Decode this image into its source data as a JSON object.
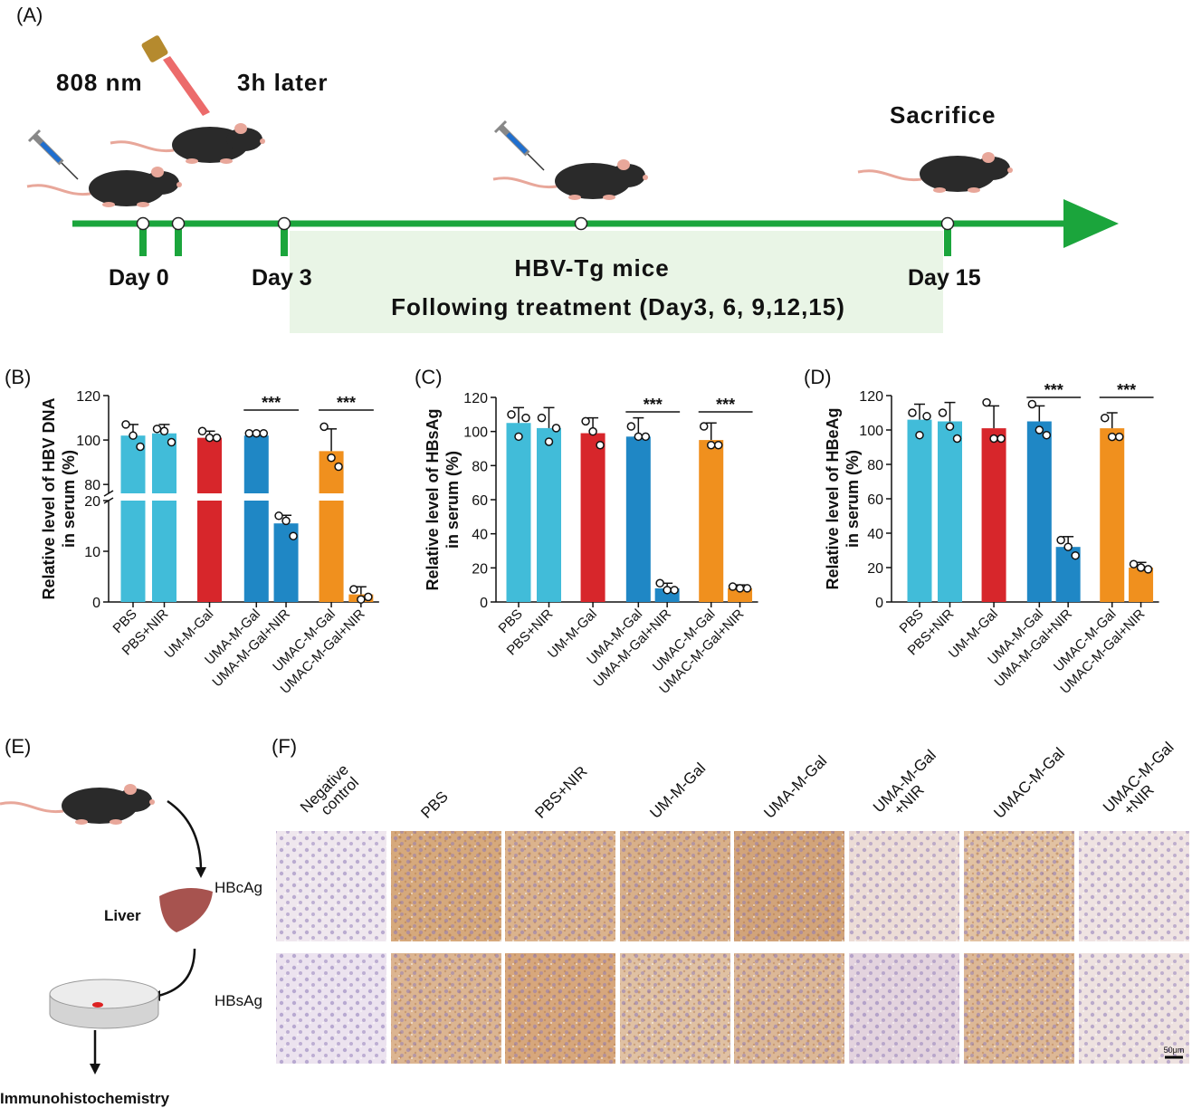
{
  "panel_a": {
    "label": "(A)",
    "laser": "808 nm",
    "later": "3h later",
    "sacrifice": "Sacrifice",
    "days": [
      "Day 0",
      "Day 3",
      "Day 15"
    ],
    "mice": "HBV-Tg mice",
    "treatment": "Following treatment (Day3, 6, 9,12,15)"
  },
  "chart_data": [
    {
      "type": "bar",
      "label": "(B)",
      "ylabel": [
        "Relative level of HBV DNA",
        "in serum (%)"
      ],
      "categories": [
        "PBS",
        "PBS+NIR",
        "UM-M-Gal",
        "UMA-M-Gal",
        "UMA-M-Gal+NIR",
        "UMAC-M-Gal",
        "UMAC-M-Gal+NIR"
      ],
      "values": [
        102,
        103,
        101,
        102,
        15.5,
        95,
        1.5
      ],
      "errors": [
        5,
        4,
        3,
        1,
        1.6,
        10,
        1.5
      ],
      "points": [
        [
          107,
          102,
          97
        ],
        [
          105,
          104,
          99
        ],
        [
          104,
          101,
          101
        ],
        [
          103,
          103,
          103
        ],
        [
          17,
          16,
          13
        ],
        [
          106,
          92,
          88
        ],
        [
          2.5,
          0.5,
          1
        ]
      ],
      "colors": [
        "#41bcd9",
        "#41bcd9",
        "#d7262b",
        "#1f87c5",
        "#1f87c5",
        "#f0901e",
        "#f0901e"
      ],
      "ylim": [
        0,
        120
      ],
      "ybreak": [
        20,
        76
      ],
      "yticks": [
        0,
        10,
        20,
        80,
        100,
        120
      ],
      "significance": [
        {
          "label": "***",
          "groups": [
            "UMA-M-Gal",
            "UMA-M-Gal+NIR"
          ]
        },
        {
          "label": "***",
          "groups": [
            "UMAC-M-Gal",
            "UMAC-M-Gal+NIR"
          ]
        }
      ]
    },
    {
      "type": "bar",
      "label": "(C)",
      "ylabel": [
        "Relative level of HBsAg",
        "in serum (%)"
      ],
      "categories": [
        "PBS",
        "PBS+NIR",
        "UM-M-Gal",
        "UMA-M-Gal",
        "UMA-M-Gal+NIR",
        "UMAC-M-Gal",
        "UMAC-M-Gal+NIR"
      ],
      "values": [
        105,
        102,
        99,
        97,
        8,
        95,
        8
      ],
      "errors": [
        9,
        12,
        9,
        11,
        3,
        10,
        2
      ],
      "points": [
        [
          110,
          97,
          108
        ],
        [
          108,
          94,
          102
        ],
        [
          106,
          100,
          92
        ],
        [
          103,
          97,
          97
        ],
        [
          11,
          7,
          7
        ],
        [
          103,
          92,
          92
        ],
        [
          9,
          8,
          8
        ]
      ],
      "colors": [
        "#41bcd9",
        "#41bcd9",
        "#d7262b",
        "#1f87c5",
        "#1f87c5",
        "#f0901e",
        "#f0901e"
      ],
      "ylim": [
        0,
        120
      ],
      "yticks": [
        0,
        20,
        40,
        60,
        80,
        100,
        120
      ],
      "significance": [
        {
          "label": "***",
          "groups": [
            "UMA-M-Gal",
            "UMA-M-Gal+NIR"
          ]
        },
        {
          "label": "***",
          "groups": [
            "UMAC-M-Gal",
            "UMAC-M-Gal+NIR"
          ]
        }
      ]
    },
    {
      "type": "bar",
      "label": "(D)",
      "ylabel": [
        "Relative level of HBeAg",
        "in serum (%)"
      ],
      "categories": [
        "PBS",
        "PBS+NIR",
        "UM-M-Gal",
        "UMA-M-Gal",
        "UMA-M-Gal+NIR",
        "UMAC-M-Gal",
        "UMAC-M-Gal+NIR"
      ],
      "values": [
        106,
        105,
        101,
        105,
        32,
        101,
        20
      ],
      "errors": [
        9,
        11,
        13,
        9,
        6,
        9,
        3
      ],
      "points": [
        [
          110,
          97,
          108
        ],
        [
          110,
          102,
          95
        ],
        [
          116,
          95,
          95
        ],
        [
          115,
          100,
          97
        ],
        [
          36,
          32,
          27
        ],
        [
          107,
          96,
          96
        ],
        [
          22,
          20,
          19
        ]
      ],
      "colors": [
        "#41bcd9",
        "#41bcd9",
        "#d7262b",
        "#1f87c5",
        "#1f87c5",
        "#f0901e",
        "#f0901e"
      ],
      "ylim": [
        0,
        120
      ],
      "yticks": [
        0,
        20,
        40,
        60,
        80,
        100,
        120
      ],
      "significance": [
        {
          "label": "***",
          "groups": [
            "UMA-M-Gal",
            "UMA-M-Gal+NIR"
          ]
        },
        {
          "label": "***",
          "groups": [
            "UMAC-M-Gal",
            "UMAC-M-Gal+NIR"
          ]
        }
      ]
    }
  ],
  "panel_e": {
    "label": "(E)",
    "liver": "Liver",
    "rows": [
      "HBcAg",
      "HBsAg"
    ],
    "method": "Immunohistochemistry"
  },
  "panel_f": {
    "label": "(F)",
    "columns": [
      [
        "Negative",
        "control"
      ],
      [
        "PBS"
      ],
      [
        "PBS+NIR"
      ],
      [
        "UM-M-Gal"
      ],
      [
        "UMA-M-Gal"
      ],
      [
        "UMA-M-Gal",
        "+NIR"
      ],
      [
        "UMAC-M-Gal"
      ],
      [
        "UMAC-M-Gal",
        "+NIR"
      ]
    ],
    "scale": "50μm"
  }
}
